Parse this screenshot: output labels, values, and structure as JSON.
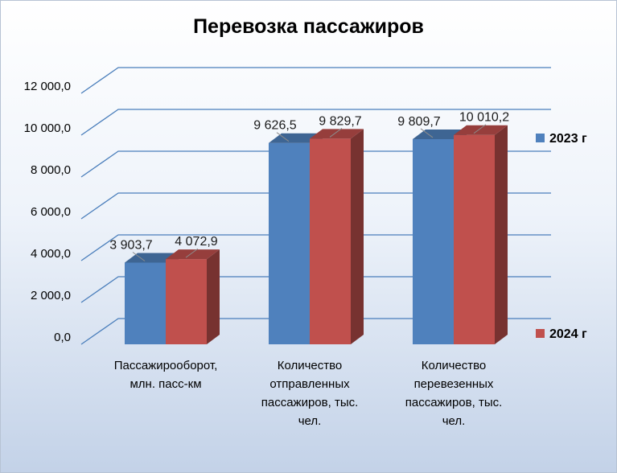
{
  "chart_data": {
    "type": "bar",
    "title": "Перевозка пассажиров",
    "categories": [
      [
        "Пассажирооборот,",
        "млн. пасс-км"
      ],
      [
        "Количество",
        "отправленных",
        "пассажиров, тыс.",
        "чел."
      ],
      [
        "Количество",
        "перевезенных",
        "пассажиров, тыс.",
        "чел."
      ]
    ],
    "series": [
      {
        "name": "2023 г",
        "color": "#4f81bd",
        "values": [
          3903.7,
          9626.5,
          9809.7
        ],
        "labels": [
          "3 903,7",
          "9 626,5",
          "9 809,7"
        ]
      },
      {
        "name": "2024 г",
        "color": "#c0504d",
        "values": [
          4072.9,
          9829.7,
          10010.2
        ],
        "labels": [
          "4 072,9",
          "9 829,7",
          "10 010,2"
        ]
      }
    ],
    "ylim": [
      0,
      12000
    ],
    "yticks": [
      "0,0",
      "2 000,0",
      "4 000,0",
      "6 000,0",
      "8 000,0",
      "10 000,0",
      "12 000,0"
    ],
    "grid": true,
    "legend_position": "right",
    "style": "3d-clustered-column"
  }
}
